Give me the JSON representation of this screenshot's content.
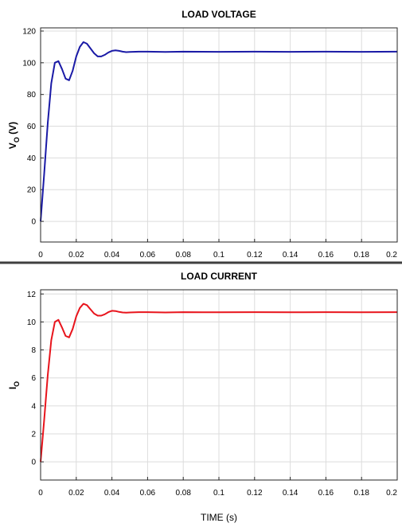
{
  "chart_data": [
    {
      "type": "line",
      "title": "LOAD VOLTAGE",
      "ylabel_main": "V",
      "ylabel_sub": "O",
      "ylabel_unit": " (V)",
      "xlabel": "",
      "xlim": [
        0,
        0.2
      ],
      "ylim": [
        -13,
        122
      ],
      "xticks": [
        0,
        0.02,
        0.04,
        0.06,
        0.08,
        0.1,
        0.12,
        0.14,
        0.16,
        0.18,
        0.2
      ],
      "xtick_labels": [
        "0",
        "0.02",
        "0.04",
        "0.06",
        "0.08",
        "0.1",
        "0.12",
        "0.14",
        "0.16",
        "0.18",
        "0.2"
      ],
      "yticks": [
        0,
        20,
        40,
        60,
        80,
        100,
        120
      ],
      "ytick_labels": [
        "0",
        "20",
        "40",
        "60",
        "80",
        "100",
        "120"
      ],
      "grid": true,
      "color": "#1a1aa6",
      "series": [
        {
          "x": [
            0,
            0.002,
            0.004,
            0.006,
            0.008,
            0.01,
            0.012,
            0.014,
            0.016,
            0.018,
            0.02,
            0.022,
            0.024,
            0.026,
            0.028,
            0.03,
            0.032,
            0.034,
            0.036,
            0.038,
            0.04,
            0.042,
            0.044,
            0.046,
            0.048,
            0.05,
            0.055,
            0.06,
            0.07,
            0.08,
            0.1,
            0.12,
            0.14,
            0.16,
            0.18,
            0.2
          ],
          "y": [
            0,
            30,
            62,
            87,
            100,
            101,
            96,
            90,
            89,
            95,
            104,
            110,
            113,
            112,
            109,
            106,
            104,
            104,
            105,
            106.5,
            107.5,
            107.8,
            107.5,
            107,
            106.7,
            106.8,
            107,
            107,
            106.8,
            107,
            106.9,
            107,
            106.9,
            107,
            106.9,
            107
          ]
        }
      ]
    },
    {
      "type": "line",
      "title": "LOAD CURRENT",
      "ylabel_main": "I",
      "ylabel_sub": "O",
      "ylabel_unit": "",
      "xlabel": "TIME (s)",
      "xlim": [
        0,
        0.2
      ],
      "ylim": [
        -1.3,
        12.3
      ],
      "xticks": [
        0,
        0.02,
        0.04,
        0.06,
        0.08,
        0.1,
        0.12,
        0.14,
        0.16,
        0.18,
        0.2
      ],
      "xtick_labels": [
        "0",
        "0.02",
        "0.04",
        "0.06",
        "0.08",
        "0.1",
        "0.12",
        "0.14",
        "0.16",
        "0.18",
        "0.2"
      ],
      "yticks": [
        0,
        2,
        4,
        6,
        8,
        10,
        12
      ],
      "ytick_labels": [
        "0",
        "2",
        "4",
        "6",
        "8",
        "10",
        "12"
      ],
      "grid": true,
      "color": "#e8141c",
      "series": [
        {
          "x": [
            0,
            0.002,
            0.004,
            0.006,
            0.008,
            0.01,
            0.012,
            0.014,
            0.016,
            0.018,
            0.02,
            0.022,
            0.024,
            0.026,
            0.028,
            0.03,
            0.032,
            0.034,
            0.036,
            0.038,
            0.04,
            0.042,
            0.044,
            0.046,
            0.048,
            0.05,
            0.055,
            0.06,
            0.07,
            0.08,
            0.1,
            0.12,
            0.14,
            0.16,
            0.18,
            0.2
          ],
          "y": [
            0,
            3.0,
            6.2,
            8.7,
            10.0,
            10.15,
            9.6,
            9.0,
            8.9,
            9.5,
            10.4,
            11.0,
            11.3,
            11.2,
            10.9,
            10.6,
            10.45,
            10.45,
            10.55,
            10.7,
            10.8,
            10.78,
            10.72,
            10.68,
            10.66,
            10.68,
            10.7,
            10.7,
            10.68,
            10.7,
            10.69,
            10.7,
            10.69,
            10.7,
            10.69,
            10.7
          ]
        }
      ]
    }
  ]
}
